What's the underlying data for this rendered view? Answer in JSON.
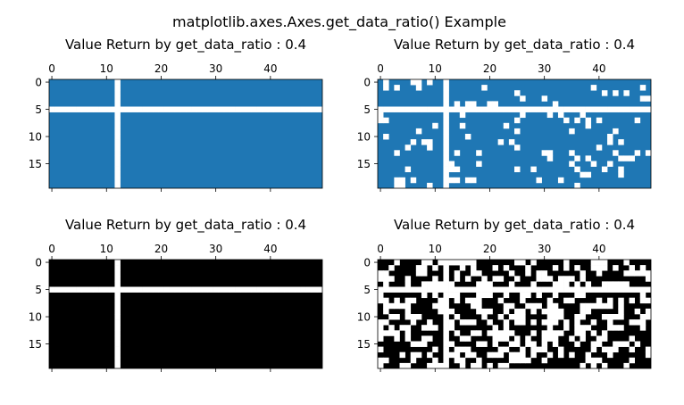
{
  "figure": {
    "suptitle": "matplotlib.axes.Axes.get_data_ratio() Example"
  },
  "chart_data": [
    {
      "type": "heatmap",
      "title": "Value Return by get_data_ratio : 0.4",
      "xlabel": "",
      "ylabel": "",
      "grid_shape": [
        20,
        50
      ],
      "xlim": [
        -0.5,
        49.5
      ],
      "ylim": [
        19.5,
        -0.5
      ],
      "xticks": [
        0,
        10,
        20,
        30,
        40
      ],
      "yticks": [
        0,
        5,
        10,
        15
      ],
      "x_tick_position": "top",
      "mask": "point",
      "colormap": [
        "#1f77b4",
        "#ffffff"
      ],
      "white_row": 5,
      "white_col": 12
    },
    {
      "type": "heatmap",
      "title": "Value Return by get_data_ratio : 0.4",
      "xlabel": "",
      "ylabel": "",
      "grid_shape": [
        20,
        50
      ],
      "xlim": [
        -0.5,
        49.5
      ],
      "ylim": [
        19.5,
        -0.5
      ],
      "xticks": [
        0,
        10,
        20,
        30,
        40
      ],
      "yticks": [
        0,
        5,
        10,
        15
      ],
      "x_tick_position": "top",
      "mask": "point_random",
      "colormap": [
        "#1f77b4",
        "#ffffff"
      ],
      "white_row": 5,
      "white_col": 12,
      "random_white_fraction": 0.12
    },
    {
      "type": "heatmap",
      "title": "Value Return by get_data_ratio : 0.4",
      "xlabel": "",
      "ylabel": "",
      "grid_shape": [
        20,
        50
      ],
      "xlim": [
        -0.5,
        49.5
      ],
      "ylim": [
        19.5,
        -0.5
      ],
      "xticks": [
        0,
        10,
        20,
        30,
        40
      ],
      "yticks": [
        0,
        5,
        10,
        15
      ],
      "x_tick_position": "top",
      "mask": "point",
      "colormap": [
        "#000000",
        "#ffffff"
      ],
      "white_row": 5,
      "white_col": 12
    },
    {
      "type": "heatmap",
      "title": "Value Return by get_data_ratio : 0.4",
      "xlabel": "",
      "ylabel": "",
      "grid_shape": [
        20,
        50
      ],
      "xlim": [
        -0.5,
        49.5
      ],
      "ylim": [
        19.5,
        -0.5
      ],
      "xticks": [
        0,
        10,
        20,
        30,
        40
      ],
      "yticks": [
        0,
        5,
        10,
        15
      ],
      "x_tick_position": "top",
      "mask": "point_random",
      "colormap": [
        "#000000",
        "#ffffff"
      ],
      "white_row": 5,
      "white_col": 12,
      "random_white_fraction": 0.42
    }
  ]
}
